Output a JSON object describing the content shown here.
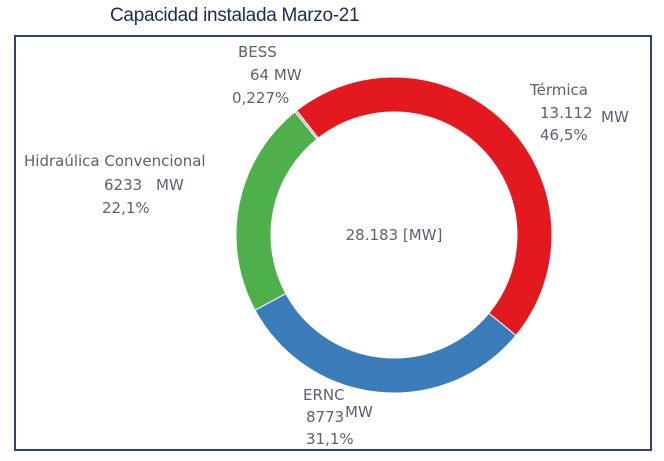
{
  "chart_data": {
    "type": "pie",
    "variant": "donut",
    "title": "Capacidad instalada Marzo-21",
    "center_label": "28.183 [MW]",
    "total_mw": 28183,
    "unit": "MW",
    "slices": [
      {
        "name": "Térmica",
        "value": 13112,
        "value_label": "13.112",
        "unit": "MW",
        "percent": 46.5,
        "percent_label": "46,5%",
        "color": "#e3191f"
      },
      {
        "name": "ERNC",
        "value": 8773,
        "value_label": "8773",
        "unit": "MW",
        "percent": 31.1,
        "percent_label": "31,1%",
        "color": "#3a7cba"
      },
      {
        "name": "Hidraúlica Convencional",
        "value": 6233,
        "value_label": "6233",
        "unit": "MW",
        "percent": 22.1,
        "percent_label": "22,1%",
        "color": "#4db04a"
      },
      {
        "name": "BESS",
        "value": 64,
        "value_label": "64",
        "unit": "MW",
        "percent": 0.227,
        "percent_label": "0,227%",
        "color": "#c9a0b8"
      }
    ],
    "legend": "none"
  }
}
